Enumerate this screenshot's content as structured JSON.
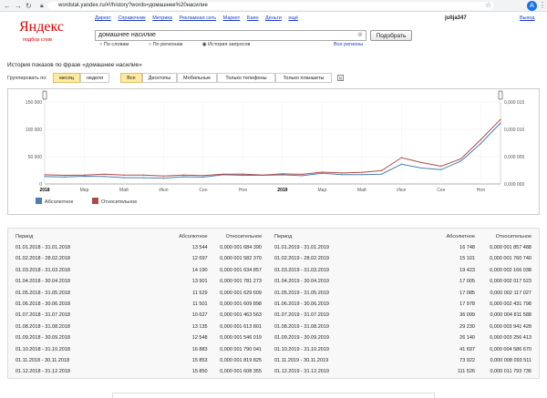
{
  "browser": {
    "url": "wordstat.yandex.ru/#!/history?words=домашнее%20насилие",
    "avatar_letter": "A"
  },
  "header": {
    "logo": "Яндекс",
    "logo_sub": "подбор слов",
    "nav": [
      "Директ",
      "Справочник",
      "Метрика",
      "Рекламная сеть",
      "Маркет",
      "Баян",
      "Деньги",
      "ещё"
    ],
    "user": "julija347",
    "exit": "Выход"
  },
  "search": {
    "value": "домашнее насилие",
    "button": "Подобрать",
    "radios": [
      "По словам",
      "По регионам",
      "История запросов"
    ],
    "selected_radio": "История запросов",
    "all_regions": "Все регионы"
  },
  "history": {
    "title": "История показов по фразе «домашнее насилие»",
    "group_label": "Группировать по:",
    "group_tabs": [
      "месяц",
      "неделя"
    ],
    "group_selected": "месяц",
    "device_tabs": [
      "Все",
      "Десктопы",
      "Мобильные",
      "Только телефоны",
      "Только планшеты"
    ],
    "device_selected": "Все"
  },
  "chart_data": {
    "type": "line",
    "categories": [
      "01.2018",
      "02.2018",
      "03.2018",
      "04.2018",
      "05.2018",
      "06.2018",
      "07.2018",
      "08.2018",
      "09.2018",
      "10.2018",
      "11.2018",
      "12.2018",
      "01.2019",
      "02.2019",
      "03.2019",
      "04.2019",
      "05.2019",
      "06.2019",
      "07.2019",
      "08.2019",
      "09.2019",
      "10.2019",
      "11.2019",
      "12.2019"
    ],
    "x_tick_labels": [
      "2018",
      "Мар",
      "Май",
      "Июл",
      "Сен",
      "Ноя",
      "2019",
      "Мар",
      "Май",
      "Июл",
      "Сен",
      "Ноя"
    ],
    "y_left_ticks": [
      "150 000",
      "100 000",
      "50 000",
      "0"
    ],
    "y_right_ticks": [
      "0,000 015",
      "0,000 010",
      "0,000 005",
      "0,000 000"
    ],
    "ylim_left": [
      0,
      150000
    ],
    "ylim_right": [
      0,
      1.5e-05
    ],
    "series": [
      {
        "name": "Абсолютное",
        "axis": "left",
        "color": "#4a7fb5",
        "values": [
          13544,
          12697,
          14190,
          13901,
          11529,
          11501,
          10627,
          13135,
          12548,
          16883,
          15853,
          15850,
          16748,
          15101,
          19423,
          17005,
          17085,
          17978,
          36099,
          29230,
          26140,
          41697,
          73922,
          111526
        ]
      },
      {
        "name": "Относительное",
        "axis": "right",
        "color": "#b04a4a",
        "values": [
          1.68439e-06,
          1.58237e-06,
          1.634857e-06,
          1.781273e-06,
          1.629609e-06,
          1.609898e-06,
          1.463563e-06,
          1.613801e-06,
          1.546019e-06,
          1.790041e-06,
          1.819825e-06,
          1.608355e-06,
          1.857488e-06,
          1.76074e-06,
          2.166038e-06,
          2.017523e-06,
          2.117027e-06,
          2.431798e-06,
          4.811588e-06,
          3.941428e-06,
          3.256413e-06,
          4.58667e-06,
          8.093511e-06,
          1.1793736e-05
        ]
      }
    ],
    "legend": "bottom-left"
  },
  "table": {
    "headers": [
      "Период",
      "Абсолютное",
      "Относительное"
    ],
    "left": [
      [
        "01.01.2018 - 31.01.2018",
        "13 544",
        "0,000 001 684 390"
      ],
      [
        "01.02.2018 - 28.02.2018",
        "12 697",
        "0,000 001 582 370"
      ],
      [
        "01.03.2018 - 31.03.2018",
        "14 190",
        "0,000 001 634 857"
      ],
      [
        "01.04.2018 - 30.04.2018",
        "13 901",
        "0,000 001 781 273"
      ],
      [
        "01.05.2018 - 31.05.2018",
        "11 529",
        "0,000 001 629 609"
      ],
      [
        "01.06.2018 - 30.06.2018",
        "11 501",
        "0,000 001 609 898"
      ],
      [
        "01.07.2018 - 31.07.2018",
        "10 627",
        "0,000 001 463 563"
      ],
      [
        "01.08.2018 - 31.08.2018",
        "13 135",
        "0,000 001 613 801"
      ],
      [
        "01.09.2018 - 30.09.2018",
        "12 548",
        "0,000 001 546 019"
      ],
      [
        "01.10.2018 - 31.10.2018",
        "16 883",
        "0,000 001 790 041"
      ],
      [
        "01.11.2018 - 30.11.2018",
        "15 853",
        "0,000 001 819 825"
      ],
      [
        "01.12.2018 - 31.12.2018",
        "15 850",
        "0,000 001 608 355"
      ]
    ],
    "right": [
      [
        "01.01.2019 - 31.01.2019",
        "16 748",
        "0,000 001 857 488"
      ],
      [
        "01.02.2019 - 28.02.2019",
        "15 101",
        "0,000 001 760 740"
      ],
      [
        "01.03.2019 - 31.03.2019",
        "19 423",
        "0,000 002 166 038"
      ],
      [
        "01.04.2019 - 30.04.2019",
        "17 005",
        "0,000 002 017 523"
      ],
      [
        "01.05.2019 - 31.05.2019",
        "17 085",
        "0,000 002 117 027"
      ],
      [
        "01.06.2019 - 30.06.2019",
        "17 978",
        "0,000 002 431 798"
      ],
      [
        "01.07.2019 - 31.07.2019",
        "36 099",
        "0,000 004 811 588"
      ],
      [
        "01.08.2019 - 31.08.2019",
        "29 230",
        "0,000 003 941 428"
      ],
      [
        "01.09.2019 - 30.09.2019",
        "26 140",
        "0,000 003 256 413"
      ],
      [
        "01.10.2019 - 31.10.2019",
        "41 697",
        "0,000 004 586 670"
      ],
      [
        "01.11.2019 - 30.11.2019",
        "73 922",
        "0,000 008 093 511"
      ],
      [
        "01.12.2019 - 31.12.2019",
        "111 526",
        "0,000 011 793 736"
      ]
    ]
  }
}
